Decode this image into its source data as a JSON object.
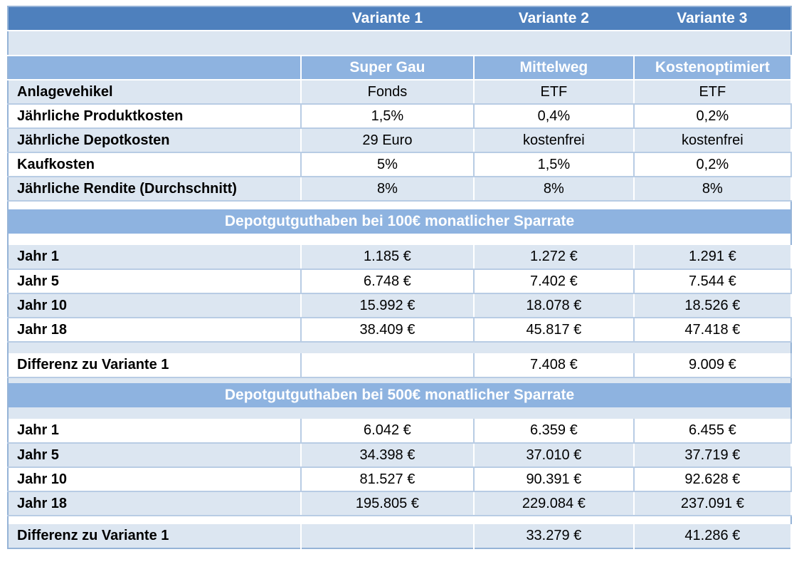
{
  "title_row": {
    "variants": [
      "Variante 1",
      "Variante 2",
      "Variante 3"
    ]
  },
  "scenario_row": {
    "names": [
      "Super Gau",
      "Mittelweg",
      "Kostenoptimiert"
    ]
  },
  "attributes": [
    {
      "label": "Anlagevehikel",
      "values": [
        "Fonds",
        "ETF",
        "ETF"
      ]
    },
    {
      "label": "Jährliche Produktkosten",
      "values": [
        "1,5%",
        "0,4%",
        "0,2%"
      ]
    },
    {
      "label": "Jährliche Depotkosten",
      "values": [
        "29 Euro",
        "kostenfrei",
        "kostenfrei"
      ]
    },
    {
      "label": "Kaufkosten",
      "values": [
        "5%",
        "1,5%",
        "0,2%"
      ]
    },
    {
      "label": "Jährliche Rendite (Durchschnitt)",
      "values": [
        "8%",
        "8%",
        "8%"
      ]
    }
  ],
  "sections": [
    {
      "title": "Depotgutguthaben bei 100€ monatlicher Sparrate",
      "rows": [
        {
          "label": "Jahr 1",
          "values": [
            "1.185 €",
            "1.272 €",
            "1.291 €"
          ]
        },
        {
          "label": "Jahr 5",
          "values": [
            "6.748 €",
            "7.402 €",
            "7.544 €"
          ]
        },
        {
          "label": "Jahr 10",
          "values": [
            "15.992 €",
            "18.078 €",
            "18.526 €"
          ]
        },
        {
          "label": "Jahr 18",
          "values": [
            "38.409 €",
            "45.817 €",
            "47.418 €"
          ]
        }
      ],
      "difference": {
        "label": "Differenz zu Variante 1",
        "values": [
          "",
          "7.408 €",
          "9.009 €"
        ]
      }
    },
    {
      "title": "Depotgutguthaben bei 500€ monatlicher Sparrate",
      "rows": [
        {
          "label": "Jahr 1",
          "values": [
            "6.042 €",
            "6.359 €",
            "6.455 €"
          ]
        },
        {
          "label": "Jahr 5",
          "values": [
            "34.398 €",
            "37.010 €",
            "37.719 €"
          ]
        },
        {
          "label": "Jahr 10",
          "values": [
            "81.527 €",
            "90.391 €",
            "92.628 €"
          ]
        },
        {
          "label": "Jahr 18",
          "values": [
            "195.805 €",
            "229.084 €",
            "237.091 €"
          ]
        }
      ],
      "difference": {
        "label": "Differenz zu Variante 1",
        "values": [
          "",
          "33.279 €",
          "41.286 €"
        ]
      }
    }
  ],
  "colors": {
    "header_blue": "#4e80bd",
    "band_blue": "#8eb3e0",
    "row_light_blue": "#dce6f1",
    "grid_light": "#b8cce4",
    "outer_border": "#95b3d7",
    "header_text": "#ffffff",
    "body_text": "#000000"
  }
}
